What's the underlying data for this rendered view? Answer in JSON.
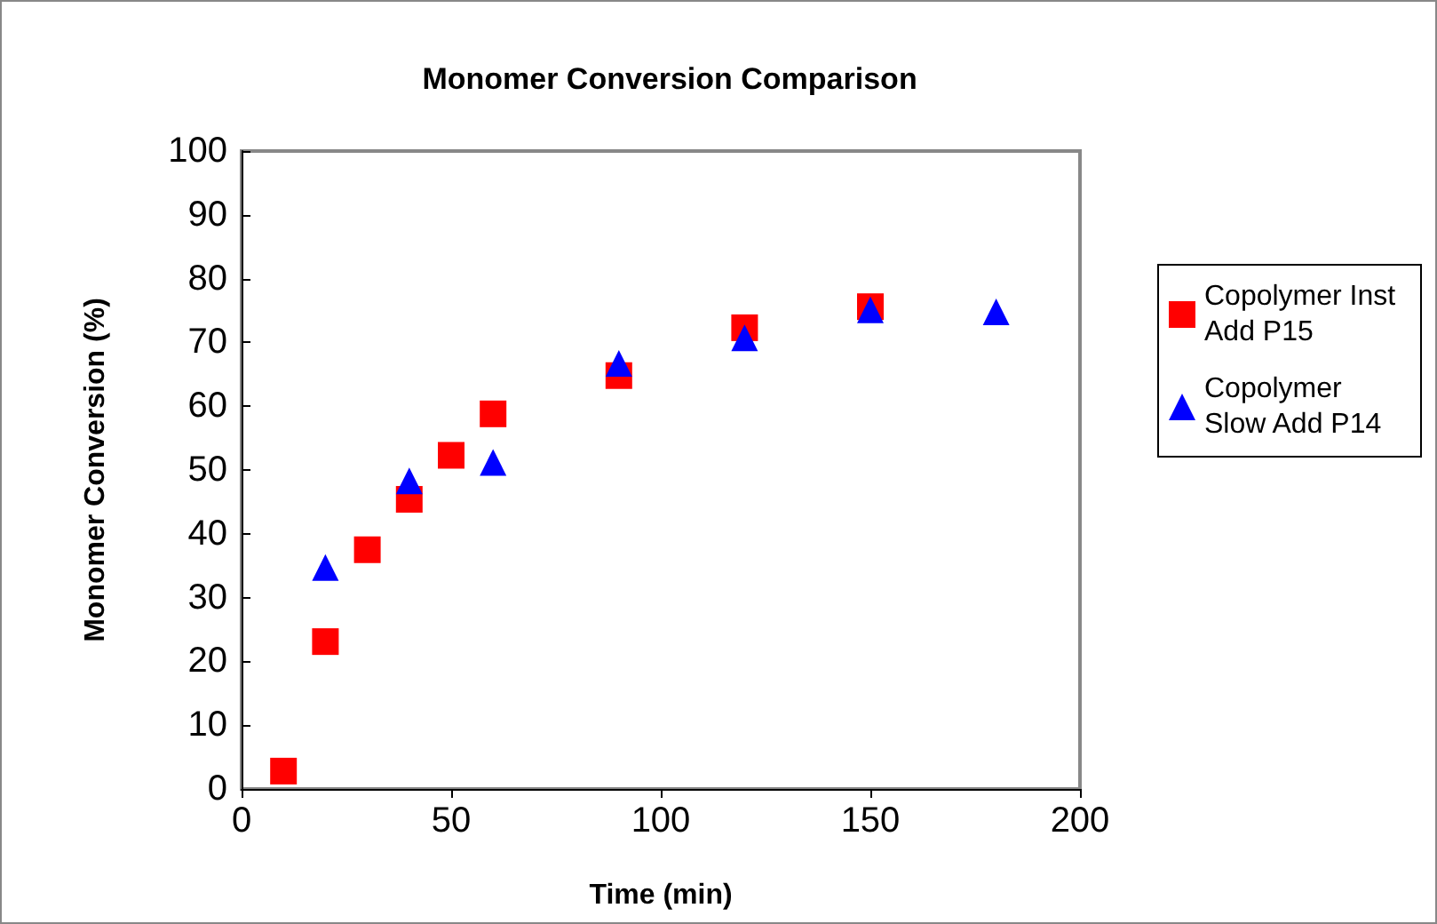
{
  "chart_data": {
    "type": "scatter",
    "title": "Monomer Conversion Comparison",
    "xlabel": "Time (min)",
    "ylabel": "Monomer Conversion (%)",
    "xlim": [
      0,
      200
    ],
    "xticks": [
      0,
      50,
      100,
      150,
      200
    ],
    "ylim": [
      0,
      100
    ],
    "yticks": [
      0,
      10,
      20,
      30,
      40,
      50,
      60,
      70,
      80,
      90,
      100
    ],
    "grid": false,
    "legend": "right",
    "series": [
      {
        "name": "Copolymer Inst Add P15",
        "color": "#ff0000",
        "marker": "square",
        "x": [
          10,
          20,
          30,
          40,
          50,
          60,
          90,
          120,
          150
        ],
        "values": [
          2.8,
          23.1,
          37.5,
          45.4,
          52.3,
          58.8,
          64.8,
          72.3,
          75.6
        ]
      },
      {
        "name": "Copolymer Slow Add P14",
        "color": "#0000ff",
        "marker": "triangle",
        "x": [
          20,
          40,
          60,
          90,
          120,
          150,
          180
        ],
        "values": [
          34.7,
          48.3,
          51.2,
          66.7,
          70.7,
          75.1,
          74.8
        ]
      }
    ]
  }
}
